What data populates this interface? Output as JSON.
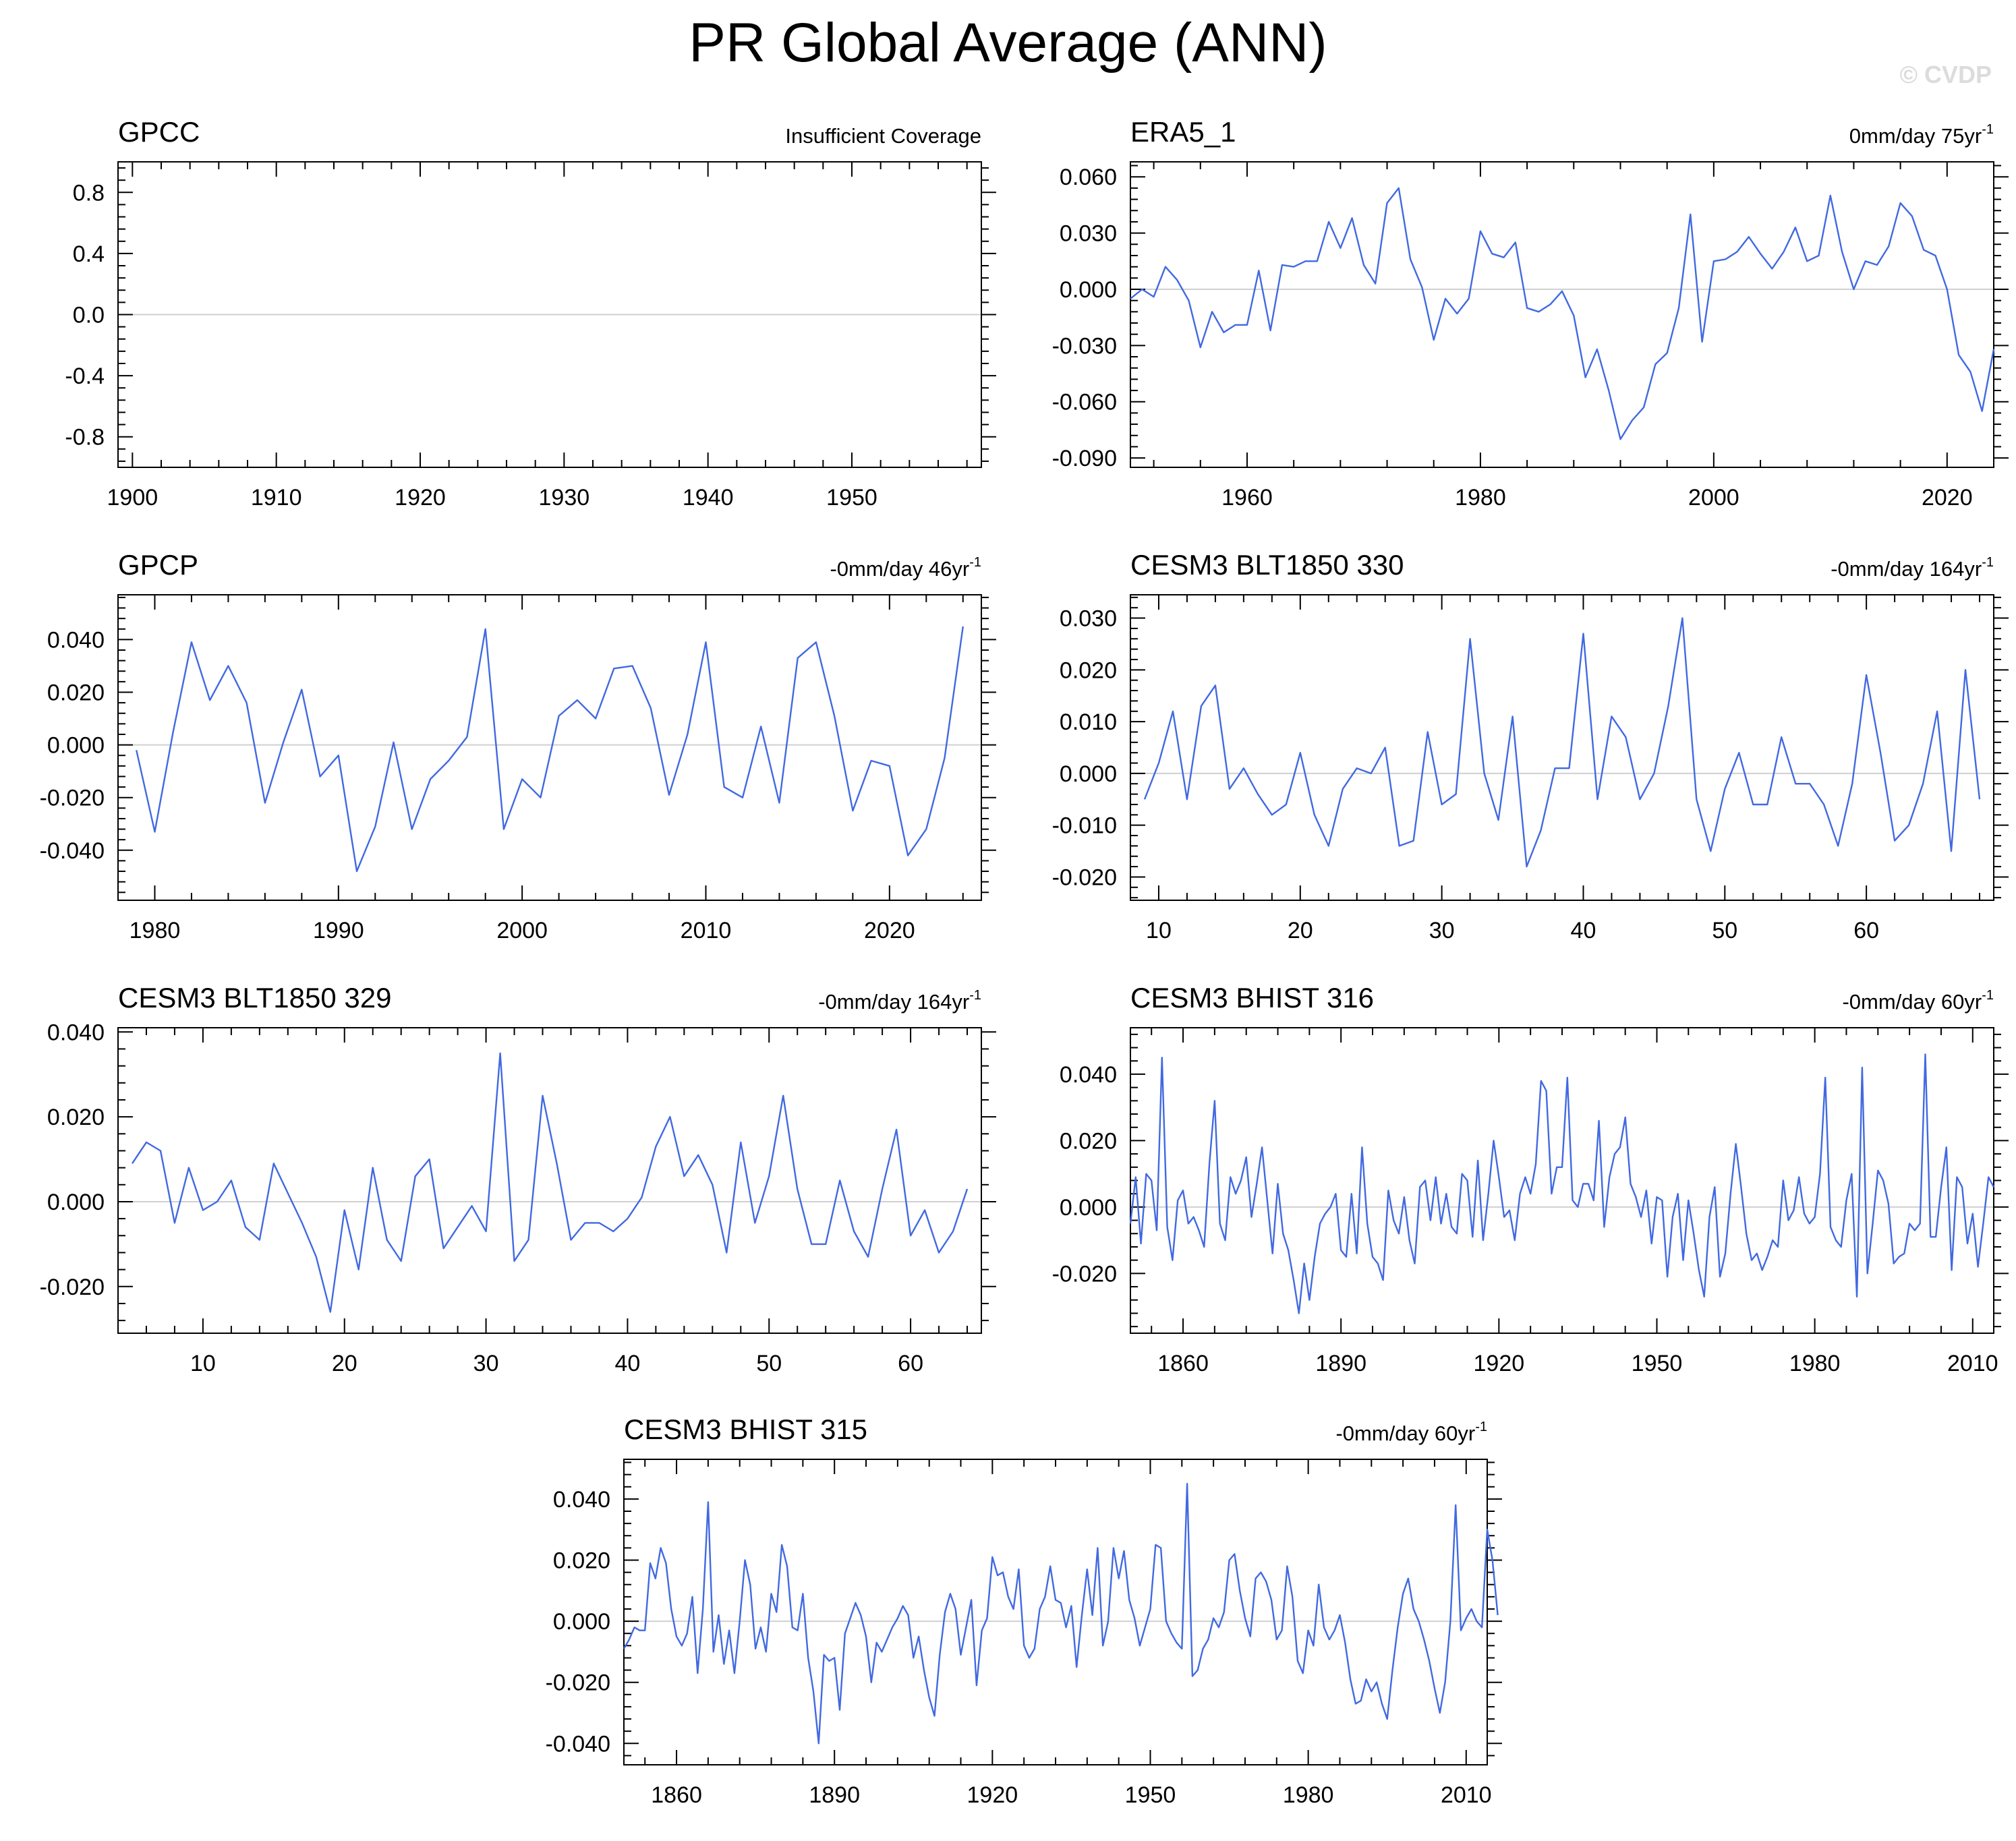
{
  "title": "PR Global Average (ANN)",
  "watermark": "© CVDP",
  "colors": {
    "line": "#4169e1",
    "zero": "#d0d0d0",
    "axis": "#000000"
  },
  "chart_data": [
    {
      "type": "line",
      "title": "GPCC",
      "right_text": "Insufficient Coverage",
      "xlim": [
        1899,
        1959
      ],
      "ylim": [
        -1.0,
        1.0
      ],
      "xticks": [
        1900,
        1910,
        1920,
        1930,
        1940,
        1950
      ],
      "yticks": [
        0.8,
        0.4,
        0.0,
        -0.4,
        -0.8
      ],
      "ytick_labels": [
        "0.8",
        "0.4",
        "0.0",
        "-0.4",
        "-0.8"
      ],
      "x_start": 1900,
      "y": []
    },
    {
      "type": "line",
      "title": "ERA5_1",
      "right_text": "0mm/day 75yr",
      "right_sup": "-1",
      "xlim": [
        1950,
        2024
      ],
      "ylim": [
        -0.095,
        0.068
      ],
      "xticks": [
        1960,
        1980,
        2000,
        2020
      ],
      "yticks": [
        0.06,
        0.03,
        0.0,
        -0.03,
        -0.06,
        -0.09
      ],
      "ytick_labels": [
        "0.060",
        "0.030",
        "0.000",
        "-0.030",
        "-0.060",
        "-0.090"
      ],
      "x_start": 1950,
      "y": [
        -0.005,
        0.0,
        -0.004,
        0.012,
        0.005,
        -0.006,
        -0.031,
        -0.012,
        -0.023,
        -0.019,
        -0.019,
        0.01,
        -0.022,
        0.013,
        0.012,
        0.015,
        0.015,
        0.036,
        0.022,
        0.038,
        0.013,
        0.003,
        0.046,
        0.054,
        0.016,
        0.001,
        -0.027,
        -0.005,
        -0.013,
        -0.005,
        0.031,
        0.019,
        0.017,
        0.025,
        -0.01,
        -0.012,
        -0.008,
        -0.001,
        -0.014,
        -0.047,
        -0.032,
        -0.054,
        -0.08,
        -0.07,
        -0.063,
        -0.04,
        -0.034,
        -0.01,
        0.04,
        -0.028,
        0.015,
        0.016,
        0.02,
        0.028,
        0.019,
        0.011,
        0.02,
        0.033,
        0.015,
        0.018,
        0.05,
        0.02,
        0.0,
        0.015,
        0.013,
        0.023,
        0.046,
        0.039,
        0.021,
        0.018,
        0.0,
        -0.035,
        -0.044,
        -0.065,
        -0.032
      ]
    },
    {
      "type": "line",
      "title": "GPCP",
      "right_text": "-0mm/day 46yr",
      "right_sup": "-1",
      "xlim": [
        1978,
        2025
      ],
      "ylim": [
        -0.059,
        0.057
      ],
      "xticks": [
        1980,
        1990,
        2000,
        2010,
        2020
      ],
      "yticks": [
        0.04,
        0.02,
        0.0,
        -0.02,
        -0.04
      ],
      "ytick_labels": [
        "0.040",
        "0.020",
        "0.000",
        "-0.020",
        "-0.040"
      ],
      "x_start": 1979,
      "y": [
        -0.002,
        -0.033,
        0.005,
        0.039,
        0.017,
        0.03,
        0.016,
        -0.022,
        0.001,
        0.021,
        -0.012,
        -0.004,
        -0.048,
        -0.031,
        0.001,
        -0.032,
        -0.013,
        -0.006,
        0.003,
        0.044,
        -0.032,
        -0.013,
        -0.02,
        0.011,
        0.017,
        0.01,
        0.029,
        0.03,
        0.014,
        -0.019,
        0.004,
        0.039,
        -0.016,
        -0.02,
        0.007,
        -0.022,
        0.033,
        0.039,
        0.011,
        -0.025,
        -0.006,
        -0.008,
        -0.042,
        -0.032,
        -0.005,
        0.045
      ]
    },
    {
      "type": "line",
      "title": "CESM3 BLT1850 330",
      "right_text": "-0mm/day 164yr",
      "right_sup": "-1",
      "xlim": [
        8,
        69
      ],
      "ylim": [
        -0.0245,
        0.0345
      ],
      "xticks": [
        10,
        20,
        30,
        40,
        50,
        60
      ],
      "yticks": [
        0.03,
        0.02,
        0.01,
        0.0,
        -0.01,
        -0.02
      ],
      "ytick_labels": [
        "0.030",
        "0.020",
        "0.010",
        "0.000",
        "-0.010",
        "-0.020"
      ],
      "x_start": 9,
      "y": [
        -0.005,
        0.002,
        0.012,
        -0.005,
        0.013,
        0.017,
        -0.003,
        0.001,
        -0.004,
        -0.008,
        -0.006,
        0.004,
        -0.008,
        -0.014,
        -0.003,
        0.001,
        0.0,
        0.005,
        -0.014,
        -0.013,
        0.008,
        -0.006,
        -0.004,
        0.026,
        0.0,
        -0.009,
        0.011,
        -0.018,
        -0.011,
        0.001,
        0.001,
        0.027,
        -0.005,
        0.011,
        0.007,
        -0.005,
        0.0,
        0.013,
        0.03,
        -0.005,
        -0.015,
        -0.003,
        0.004,
        -0.006,
        -0.006,
        0.007,
        -0.002,
        -0.002,
        -0.006,
        -0.014,
        -0.002,
        0.019,
        0.004,
        -0.013,
        -0.01,
        -0.002,
        0.012,
        -0.015,
        0.02,
        -0.005
      ]
    },
    {
      "type": "line",
      "title": "CESM3 BLT1850 329",
      "right_text": "-0mm/day 164yr",
      "right_sup": "-1",
      "xlim": [
        4,
        65
      ],
      "ylim": [
        -0.031,
        0.041
      ],
      "xticks": [
        10,
        20,
        30,
        40,
        50,
        60
      ],
      "yticks": [
        0.04,
        0.02,
        0.0,
        -0.02
      ],
      "ytick_labels": [
        "0.040",
        "0.020",
        "0.000",
        "-0.020"
      ],
      "x_start": 5,
      "y": [
        0.009,
        0.014,
        0.012,
        -0.005,
        0.008,
        -0.002,
        0.0,
        0.005,
        -0.006,
        -0.009,
        0.009,
        0.002,
        -0.005,
        -0.013,
        -0.026,
        -0.002,
        -0.016,
        0.008,
        -0.009,
        -0.014,
        0.006,
        0.01,
        -0.011,
        -0.006,
        -0.001,
        -0.007,
        0.035,
        -0.014,
        -0.009,
        0.025,
        0.009,
        -0.009,
        -0.005,
        -0.005,
        -0.007,
        -0.004,
        0.001,
        0.013,
        0.02,
        0.006,
        0.011,
        0.004,
        -0.012,
        0.014,
        -0.005,
        0.006,
        0.025,
        0.003,
        -0.01,
        -0.01,
        0.005,
        -0.007,
        -0.013,
        0.003,
        0.017,
        -0.008,
        -0.002,
        -0.012,
        -0.007,
        0.003
      ]
    },
    {
      "type": "line",
      "title": "CESM3 BHIST 316",
      "right_text": "-0mm/day 60yr",
      "right_sup": "-1",
      "xlim": [
        1850,
        2014
      ],
      "ylim": [
        -0.038,
        0.054
      ],
      "xticks": [
        1860,
        1890,
        1920,
        1950,
        1980,
        2010
      ],
      "yticks": [
        0.04,
        0.02,
        0.0,
        -0.02
      ],
      "ytick_labels": [
        "0.040",
        "0.020",
        "0.000",
        "-0.020"
      ],
      "x_start": 1850,
      "y": [
        -0.005,
        0.009,
        -0.011,
        0.01,
        0.008,
        -0.007,
        0.045,
        -0.006,
        -0.016,
        0.002,
        0.005,
        -0.005,
        -0.003,
        -0.007,
        -0.012,
        0.013,
        0.032,
        -0.005,
        -0.01,
        0.009,
        0.004,
        0.008,
        0.015,
        -0.003,
        0.007,
        0.018,
        0.002,
        -0.014,
        0.007,
        -0.008,
        -0.013,
        -0.022,
        -0.032,
        -0.017,
        -0.028,
        -0.015,
        -0.005,
        -0.002,
        0.0,
        0.004,
        -0.013,
        -0.015,
        0.004,
        -0.014,
        0.018,
        -0.005,
        -0.015,
        -0.017,
        -0.022,
        0.005,
        -0.004,
        -0.008,
        0.003,
        -0.01,
        -0.017,
        0.006,
        0.008,
        -0.004,
        0.009,
        -0.005,
        0.004,
        -0.006,
        -0.008,
        0.01,
        0.008,
        -0.009,
        0.014,
        -0.01,
        0.004,
        0.02,
        0.009,
        -0.003,
        -0.001,
        -0.01,
        0.004,
        0.009,
        0.004,
        0.013,
        0.038,
        0.035,
        0.004,
        0.012,
        0.012,
        0.039,
        0.002,
        0.0,
        0.007,
        0.007,
        0.002,
        0.026,
        -0.006,
        0.009,
        0.016,
        0.018,
        0.027,
        0.007,
        0.003,
        -0.003,
        0.005,
        -0.011,
        0.003,
        0.002,
        -0.021,
        -0.003,
        0.004,
        -0.016,
        0.002,
        -0.008,
        -0.019,
        -0.027,
        -0.003,
        0.006,
        -0.021,
        -0.014,
        0.004,
        0.019,
        0.006,
        -0.008,
        -0.016,
        -0.014,
        -0.019,
        -0.015,
        -0.01,
        -0.012,
        0.008,
        -0.004,
        -0.001,
        0.009,
        -0.002,
        -0.005,
        -0.003,
        0.01,
        0.039,
        -0.006,
        -0.01,
        -0.012,
        0.002,
        0.01,
        -0.027,
        0.042,
        -0.02,
        -0.005,
        0.011,
        0.008,
        0.001,
        -0.017,
        -0.015,
        -0.014,
        -0.005,
        -0.007,
        -0.005,
        0.046,
        -0.009,
        -0.009,
        0.006,
        0.018,
        -0.019,
        0.009,
        0.006,
        -0.011,
        -0.002,
        -0.018,
        -0.005,
        0.009,
        0.006
      ]
    },
    {
      "type": "line",
      "title": "CESM3 BHIST 315",
      "right_text": "-0mm/day 60yr",
      "right_sup": "-1",
      "xlim": [
        1850,
        2014
      ],
      "ylim": [
        -0.047,
        0.053
      ],
      "xticks": [
        1860,
        1890,
        1920,
        1950,
        1980,
        2010
      ],
      "yticks": [
        0.04,
        0.02,
        0.0,
        -0.02,
        -0.04
      ],
      "ytick_labels": [
        "0.040",
        "0.020",
        "0.000",
        "-0.020",
        "-0.040"
      ],
      "x_start": 1850,
      "y": [
        -0.009,
        -0.006,
        -0.002,
        -0.003,
        -0.003,
        0.019,
        0.014,
        0.024,
        0.019,
        0.004,
        -0.005,
        -0.008,
        -0.004,
        0.008,
        -0.017,
        0.004,
        0.039,
        -0.01,
        0.002,
        -0.014,
        -0.003,
        -0.017,
        0.0,
        0.02,
        0.012,
        -0.009,
        -0.002,
        -0.01,
        0.009,
        0.003,
        0.025,
        0.018,
        -0.002,
        -0.003,
        0.009,
        -0.012,
        -0.023,
        -0.04,
        -0.011,
        -0.013,
        -0.012,
        -0.029,
        -0.004,
        0.001,
        0.006,
        0.002,
        -0.005,
        -0.02,
        -0.007,
        -0.01,
        -0.006,
        -0.002,
        0.001,
        0.005,
        0.002,
        -0.012,
        -0.005,
        -0.016,
        -0.025,
        -0.031,
        -0.011,
        0.003,
        0.009,
        0.004,
        -0.011,
        -0.002,
        0.007,
        -0.021,
        -0.003,
        0.001,
        0.021,
        0.015,
        0.016,
        0.008,
        0.004,
        0.017,
        -0.008,
        -0.012,
        -0.009,
        0.004,
        0.008,
        0.018,
        0.007,
        0.006,
        -0.002,
        0.005,
        -0.015,
        0.002,
        0.017,
        0.002,
        0.024,
        -0.008,
        0.0,
        0.024,
        0.014,
        0.023,
        0.007,
        0.001,
        -0.008,
        -0.002,
        0.004,
        0.025,
        0.024,
        0.0,
        -0.004,
        -0.007,
        -0.009,
        0.045,
        -0.018,
        -0.016,
        -0.009,
        -0.006,
        0.001,
        -0.002,
        0.003,
        0.02,
        0.022,
        0.01,
        0.001,
        -0.005,
        0.014,
        0.016,
        0.013,
        0.007,
        -0.006,
        -0.003,
        0.018,
        0.008,
        -0.013,
        -0.017,
        -0.003,
        -0.008,
        0.012,
        -0.002,
        -0.006,
        -0.003,
        0.002,
        -0.007,
        -0.019,
        -0.027,
        -0.026,
        -0.019,
        -0.023,
        -0.02,
        -0.027,
        -0.032,
        -0.016,
        -0.002,
        0.009,
        0.014,
        0.004,
        0.0,
        -0.006,
        -0.013,
        -0.022,
        -0.03,
        -0.02,
        0.0,
        0.038,
        -0.003,
        0.001,
        0.004,
        0.0,
        -0.002,
        0.03,
        0.02,
        0.002
      ]
    }
  ]
}
